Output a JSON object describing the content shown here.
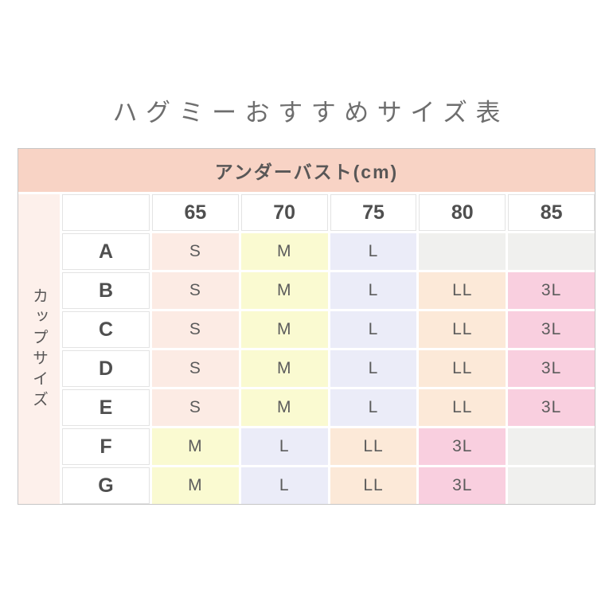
{
  "page": {
    "background": "#ffffff"
  },
  "chart_data": {
    "type": "table",
    "title": "ハグミーおすすめサイズ表",
    "header": "アンダーバスト(cm)",
    "row_axis_label": "カップサイズ",
    "column_headers": [
      "65",
      "70",
      "75",
      "80",
      "85"
    ],
    "rows": [
      {
        "label": "A",
        "cells": [
          "S",
          "M",
          "L",
          "",
          ""
        ]
      },
      {
        "label": "B",
        "cells": [
          "S",
          "M",
          "L",
          "LL",
          "3L"
        ]
      },
      {
        "label": "C",
        "cells": [
          "S",
          "M",
          "L",
          "LL",
          "3L"
        ]
      },
      {
        "label": "D",
        "cells": [
          "S",
          "M",
          "L",
          "LL",
          "3L"
        ]
      },
      {
        "label": "E",
        "cells": [
          "S",
          "M",
          "L",
          "LL",
          "3L"
        ]
      },
      {
        "label": "F",
        "cells": [
          "M",
          "L",
          "LL",
          "3L",
          ""
        ]
      },
      {
        "label": "G",
        "cells": [
          "M",
          "L",
          "LL",
          "3L",
          ""
        ]
      }
    ],
    "colors": {
      "header_bg": "#f8d3c5",
      "axis_bg": "#fdf0eb",
      "S": "#fcebe4",
      "M": "#fafad1",
      "L": "#ebecf8",
      "LL": "#fce9d8",
      "3L": "#f9cfdf",
      "empty": "#f0f0ee",
      "title_text": "#6e6e6e",
      "table_text": "#595757",
      "outer_border": "#c6c6c6",
      "white_cell_border": "#e3e3e3"
    },
    "layout": {
      "legend_position": "none",
      "grid": "white-gaps-between-cells"
    }
  }
}
